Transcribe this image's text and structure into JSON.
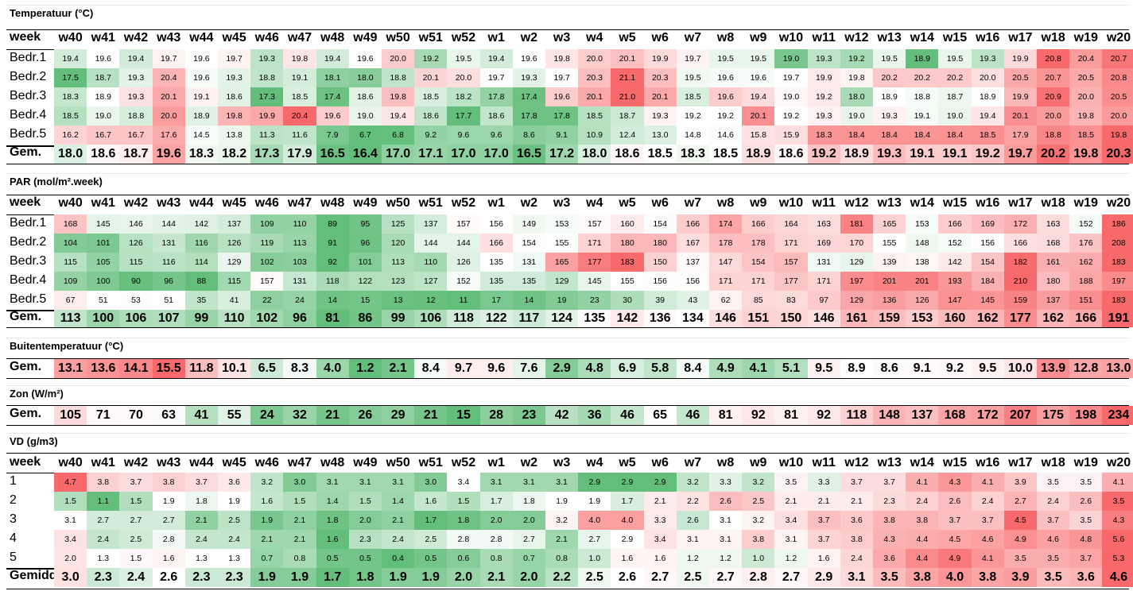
{
  "weeks": [
    "w40",
    "w41",
    "w42",
    "w43",
    "w44",
    "w45",
    "w46",
    "w47",
    "w48",
    "w49",
    "w50",
    "w51",
    "w52",
    "w1",
    "w2",
    "w3",
    "w4",
    "w5",
    "w6",
    "w7",
    "w8",
    "w9",
    "w10",
    "w11",
    "w12",
    "w13",
    "w14",
    "w15",
    "w16",
    "w17",
    "w18",
    "w19",
    "w20"
  ],
  "week_label": "week",
  "colors": {
    "high": "#f8696b",
    "mid": "#ffffff",
    "low": "#63be7b"
  },
  "chart_data": [
    {
      "type": "heatmap",
      "title": "Temperatuur (°C)",
      "rows": [
        {
          "label": "Bedr.1",
          "values": [
            19.4,
            19.6,
            19.4,
            19.7,
            19.6,
            19.7,
            19.3,
            19.8,
            19.4,
            19.6,
            20.0,
            19.2,
            19.5,
            19.4,
            19.6,
            19.8,
            20.0,
            20.1,
            19.9,
            19.7,
            19.5,
            19.5,
            19.0,
            19.3,
            19.2,
            19.5,
            18.9,
            19.5,
            19.3,
            19.9,
            20.8,
            20.4,
            20.7
          ]
        },
        {
          "label": "Bedr.2",
          "values": [
            17.5,
            18.7,
            19.3,
            20.4,
            19.6,
            19.3,
            18.8,
            19.1,
            18.1,
            18.0,
            18.8,
            20.1,
            20.0,
            19.7,
            19.3,
            19.7,
            20.3,
            21.1,
            20.3,
            19.5,
            19.6,
            19.6,
            19.7,
            19.9,
            19.8,
            20.2,
            20.2,
            20.2,
            20.0,
            20.5,
            20.7,
            20.5,
            20.8
          ]
        },
        {
          "label": "Bedr.3",
          "values": [
            18.3,
            18.9,
            19.3,
            20.1,
            19.1,
            18.6,
            17.3,
            18.5,
            17.4,
            18.6,
            19.8,
            18.5,
            18.2,
            17.8,
            17.4,
            19.6,
            20.1,
            21.0,
            20.1,
            18.5,
            19.6,
            19.4,
            19.0,
            19.2,
            18.0,
            18.9,
            18.8,
            18.7,
            18.9,
            19.9,
            20.9,
            20.0,
            20.5
          ]
        },
        {
          "label": "Bedr.4",
          "values": [
            18.5,
            19.0,
            18.8,
            20.0,
            18.9,
            19.8,
            19.9,
            20.4,
            19.6,
            19.0,
            19.4,
            18.6,
            17.7,
            18.6,
            17.8,
            17.8,
            18.5,
            18.7,
            19.3,
            19.2,
            19.2,
            20.1,
            19.2,
            19.3,
            19.0,
            19.3,
            19.1,
            19.0,
            19.4,
            20.1,
            20.0,
            19.8,
            20.0
          ]
        },
        {
          "label": "Bedr.5",
          "values": [
            16.2,
            16.7,
            16.7,
            17.6,
            14.5,
            13.8,
            11.3,
            11.6,
            7.9,
            6.7,
            6.8,
            9.2,
            9.6,
            9.6,
            8.6,
            9.1,
            10.9,
            12.4,
            13.0,
            14.8,
            14.6,
            15.8,
            15.9,
            18.3,
            18.4,
            18.4,
            18.4,
            18.4,
            18.5,
            17.9,
            18.8,
            18.5,
            19.8
          ]
        }
      ],
      "total": {
        "label": "Gem.",
        "values": [
          "18.0",
          "18.6",
          "18.7",
          "19.6",
          "18.3",
          "18.2",
          "17.3",
          "17.9",
          "16.5",
          "16.4",
          "17.0",
          "17.1",
          "17.0",
          "17.0",
          "16.5",
          "17.2",
          "18.0",
          "18.6",
          "18.5",
          "18.3",
          "18.5",
          "18.9",
          "18.6",
          "19.2",
          "18.9",
          "19.3",
          "19.1",
          "19.1",
          "19.2",
          "19.7",
          "20.2",
          "19.8",
          "20.3"
        ]
      }
    },
    {
      "type": "heatmap",
      "title": "PAR (mol/m².week)",
      "rows": [
        {
          "label": "Bedr.1",
          "values": [
            168,
            145,
            146,
            144,
            142,
            137,
            109,
            110,
            89,
            95,
            125,
            137,
            157,
            156,
            149,
            153,
            157,
            160,
            154,
            166,
            174,
            166,
            164,
            163,
            181,
            165,
            153,
            166,
            169,
            172,
            163,
            152,
            186
          ]
        },
        {
          "label": "Bedr.2",
          "values": [
            104,
            101,
            126,
            131,
            116,
            126,
            119,
            113,
            91,
            96,
            120,
            144,
            144,
            166,
            154,
            155,
            171,
            180,
            180,
            167,
            178,
            178,
            171,
            169,
            170,
            155,
            148,
            152,
            156,
            166,
            168,
            176,
            208
          ]
        },
        {
          "label": "Bedr.3",
          "values": [
            115,
            105,
            115,
            116,
            114,
            129,
            102,
            103,
            92,
            101,
            113,
            110,
            126,
            135,
            131,
            165,
            177,
            183,
            150,
            137,
            147,
            154,
            157,
            131,
            129,
            139,
            138,
            142,
            154,
            182,
            161,
            162,
            183
          ]
        },
        {
          "label": "Bedr.4",
          "values": [
            109,
            100,
            90,
            96,
            88,
            115,
            157,
            131,
            118,
            122,
            123,
            127,
            152,
            135,
            135,
            129,
            145,
            155,
            156,
            156,
            171,
            171,
            177,
            171,
            197,
            201,
            201,
            193,
            184,
            210,
            180,
            188,
            197
          ]
        },
        {
          "label": "Bedr.5",
          "values": [
            67,
            51,
            53,
            51,
            35,
            41,
            22,
            24,
            14,
            15,
            13,
            12,
            11,
            17,
            14,
            19,
            23,
            30,
            39,
            43,
            62,
            85,
            83,
            97,
            129,
            136,
            126,
            147,
            145,
            159,
            137,
            151,
            183
          ]
        }
      ],
      "total": {
        "label": "Gem.",
        "values": [
          "113",
          "100",
          "106",
          "107",
          "99",
          "110",
          "102",
          "96",
          "81",
          "86",
          "99",
          "106",
          "118",
          "122",
          "117",
          "124",
          "135",
          "142",
          "136",
          "134",
          "146",
          "151",
          "150",
          "146",
          "161",
          "159",
          "153",
          "160",
          "162",
          "177",
          "162",
          "166",
          "191"
        ]
      }
    },
    {
      "type": "heatmap",
      "title": "Buitentemperatuur (°C)",
      "rows": [],
      "total": {
        "label": "Gem.",
        "values": [
          "13.1",
          "13.6",
          "14.1",
          "15.5",
          "11.8",
          "10.1",
          "6.5",
          "8.3",
          "4.0",
          "1.2",
          "2.1",
          "8.4",
          "9.7",
          "9.6",
          "7.6",
          "2.9",
          "4.8",
          "6.9",
          "5.8",
          "8.4",
          "4.9",
          "4.1",
          "5.1",
          "9.5",
          "8.9",
          "8.6",
          "9.1",
          "9.2",
          "9.5",
          "10.0",
          "13.9",
          "12.8",
          "13.0"
        ]
      }
    },
    {
      "type": "heatmap",
      "title": "Zon (W/m²)",
      "rows": [],
      "total": {
        "label": "Gem.",
        "values": [
          "105",
          "71",
          "70",
          "63",
          "41",
          "55",
          "24",
          "32",
          "21",
          "26",
          "29",
          "21",
          "15",
          "28",
          "23",
          "42",
          "36",
          "46",
          "65",
          "46",
          "81",
          "92",
          "81",
          "92",
          "118",
          "148",
          "137",
          "168",
          "172",
          "207",
          "175",
          "198",
          "234"
        ]
      }
    },
    {
      "type": "heatmap",
      "title": "VD (g/m3)",
      "rows": [
        {
          "label": "1",
          "values": [
            4.7,
            3.8,
            3.7,
            3.8,
            3.7,
            3.6,
            3.2,
            3.0,
            3.1,
            3.1,
            3.1,
            3.0,
            3.4,
            3.1,
            3.1,
            3.1,
            2.9,
            2.9,
            2.9,
            3.2,
            3.3,
            3.2,
            3.5,
            3.3,
            3.7,
            3.7,
            4.1,
            4.3,
            4.1,
            3.9,
            3.5,
            3.5,
            4.1
          ]
        },
        {
          "label": "2",
          "values": [
            1.5,
            1.1,
            1.5,
            1.9,
            1.8,
            1.9,
            1.6,
            1.5,
            1.4,
            1.5,
            1.4,
            1.6,
            1.5,
            1.7,
            1.8,
            1.9,
            1.9,
            1.7,
            2.1,
            2.2,
            2.6,
            2.5,
            2.1,
            2.1,
            2.1,
            2.3,
            2.4,
            2.6,
            2.4,
            2.7,
            2.4,
            2.6,
            3.5
          ]
        },
        {
          "label": "3",
          "values": [
            3.1,
            2.7,
            2.7,
            2.7,
            2.1,
            2.5,
            1.9,
            2.1,
            1.8,
            2.0,
            2.1,
            1.7,
            1.8,
            2.0,
            2.0,
            3.2,
            4.0,
            4.0,
            3.3,
            2.6,
            3.1,
            3.2,
            3.4,
            3.7,
            3.6,
            3.8,
            3.8,
            3.7,
            3.7,
            4.5,
            3.7,
            3.5,
            4.3
          ]
        },
        {
          "label": "4",
          "values": [
            3.4,
            2.4,
            2.5,
            2.8,
            2.4,
            2.4,
            2.1,
            2.1,
            1.6,
            2.3,
            2.4,
            2.5,
            2.8,
            2.8,
            2.7,
            2.1,
            2.7,
            2.9,
            3.4,
            3.1,
            3.1,
            3.8,
            3.1,
            3.7,
            3.8,
            4.3,
            4.4,
            4.5,
            4.6,
            4.9,
            4.6,
            4.8,
            5.6
          ]
        },
        {
          "label": "5",
          "values": [
            2.0,
            1.3,
            1.5,
            1.6,
            1.3,
            1.3,
            0.7,
            0.8,
            0.5,
            0.5,
            0.4,
            0.5,
            0.6,
            0.8,
            0.7,
            0.8,
            1.0,
            1.6,
            1.6,
            1.2,
            1.2,
            1.0,
            1.2,
            1.6,
            2.4,
            3.6,
            4.4,
            4.9,
            4.1,
            3.5,
            3.5,
            3.7,
            5.3
          ]
        }
      ],
      "total": {
        "label": "Gemidd",
        "values": [
          "3.0",
          "2.3",
          "2.4",
          "2.6",
          "2.3",
          "2.3",
          "1.9",
          "1.9",
          "1.7",
          "1.8",
          "1.9",
          "1.9",
          "2.0",
          "2.1",
          "2.0",
          "2.2",
          "2.5",
          "2.6",
          "2.7",
          "2.5",
          "2.7",
          "2.8",
          "2.7",
          "2.9",
          "3.1",
          "3.5",
          "3.8",
          "4.0",
          "3.8",
          "3.9",
          "3.5",
          "3.6",
          "4.6"
        ]
      }
    }
  ]
}
